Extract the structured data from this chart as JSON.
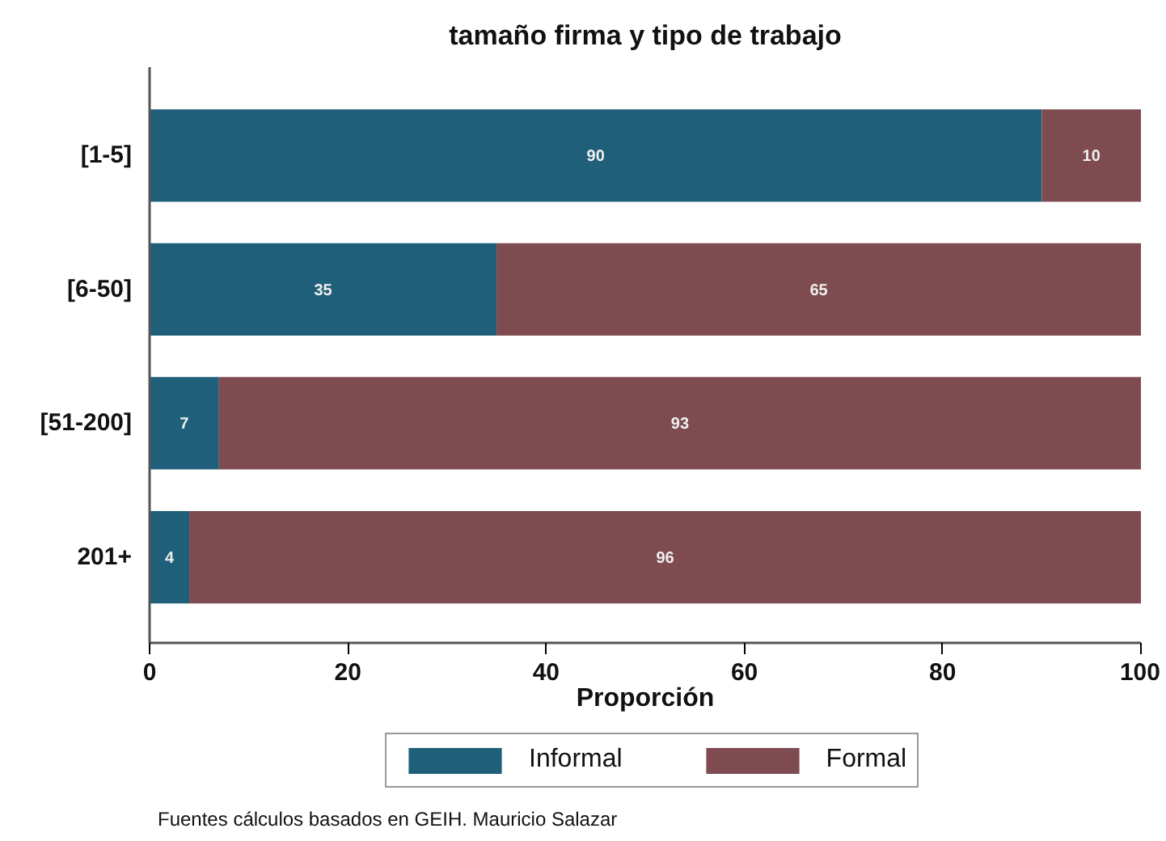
{
  "chart_data": {
    "type": "bar",
    "orientation": "horizontal",
    "stacked": true,
    "title": "tamaño firma y tipo de trabajo",
    "xlabel": "Proporción",
    "categories": [
      "[1-5]",
      "[6-50]",
      "[51-200]",
      "201+"
    ],
    "series": [
      {
        "name": "Informal",
        "color": "#1f5f7a",
        "values": [
          90,
          35,
          7,
          4
        ]
      },
      {
        "name": "Formal",
        "color": "#7e4b50",
        "values": [
          10,
          65,
          93,
          96
        ]
      }
    ],
    "xlim": [
      0,
      100
    ],
    "xticks": [
      0,
      20,
      40,
      60,
      80,
      100
    ],
    "data_labels": true,
    "legend": "bottom",
    "annotations": [
      "Fuentes cálculos basados en GEIH. Mauricio Salazar"
    ]
  }
}
